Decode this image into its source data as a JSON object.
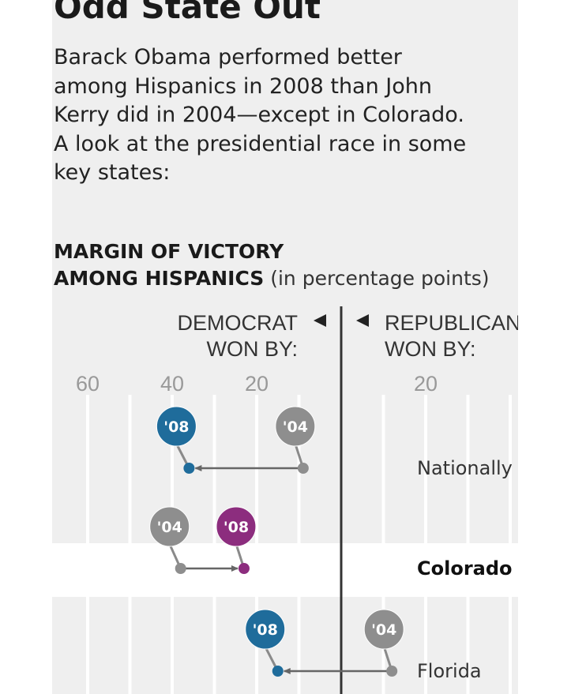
{
  "header": {
    "title": "Odd State Out",
    "subtitle_lines": [
      "Barack Obama performed better",
      "among Hispanics in 2008 than John",
      "Kerry did in 2004—except in Colorado.",
      "A look at the presidential race in some",
      "key states:"
    ],
    "section_title_line1": "MARGIN OF VICTORY",
    "section_title_line2": "AMONG HISPANICS",
    "section_unit": "(in percentage points)"
  },
  "colors": {
    "background": "#efefef",
    "band": "#ffffff",
    "y2008_default": "#1f6c9b",
    "y2008_highlight": "#8c2d7e",
    "y2004": "#8e8e8e",
    "center_line": "#333333",
    "arrow": "#777777"
  },
  "chart_data": {
    "type": "dot-arrow",
    "x_axis": {
      "left_label_line1": "DEMOCRAT",
      "left_label_line2": "WON BY:",
      "right_label_line1": "REPUBLICAN",
      "right_label_line2": "WON BY:",
      "left_ticks": [
        "60",
        "40",
        "20"
      ],
      "right_ticks": [
        "20"
      ],
      "left_range": [
        0,
        60
      ],
      "right_range": [
        0,
        40
      ],
      "grid": true
    },
    "rows": [
      {
        "name": "Nationally",
        "bold": false,
        "y2004_margin_dem": 9,
        "y2008_margin_dem": 36,
        "year2004": "'04",
        "year2008": "'08",
        "highlight": false
      },
      {
        "name": "Colorado",
        "bold": true,
        "y2004_margin_dem": 38,
        "y2008_margin_dem": 23,
        "year2004": "'04",
        "year2008": "'08",
        "highlight": true
      },
      {
        "name": "Florida",
        "bold": false,
        "y2004_margin_dem": -12,
        "y2008_margin_dem": 15,
        "year2004": "'04",
        "year2008": "'08",
        "highlight": false
      }
    ]
  }
}
